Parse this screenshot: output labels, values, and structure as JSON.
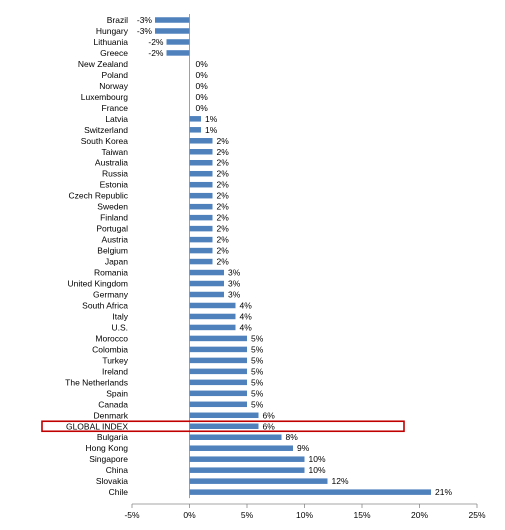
{
  "chart_data": {
    "type": "bar",
    "orientation": "horizontal",
    "title": "",
    "xlabel": "",
    "ylabel": "",
    "xlim": [
      -5,
      25
    ],
    "x_ticks": [
      -5,
      0,
      5,
      10,
      15,
      20,
      25
    ],
    "x_tick_labels": [
      "-5%",
      "0%",
      "5%",
      "10%",
      "15%",
      "20%",
      "25%"
    ],
    "grid": false,
    "legend": "none",
    "bar_color": "#4f81bd",
    "highlight": {
      "category": "GLOBAL INDEX",
      "outline_color": "#c00000"
    },
    "categories": [
      "Brazil",
      "Hungary",
      "Lithuania",
      "Greece",
      "New Zealand",
      "Poland",
      "Norway",
      "Luxembourg",
      "France",
      "Latvia",
      "Switzerland",
      "South Korea",
      "Taiwan",
      "Australia",
      "Russia",
      "Estonia",
      "Czech Republic",
      "Sweden",
      "Finland",
      "Portugal",
      "Austria",
      "Belgium",
      "Japan",
      "Romania",
      "United Kingdom",
      "Germany",
      "South Africa",
      "Italy",
      "U.S.",
      "Morocco",
      "Colombia",
      "Turkey",
      "Ireland",
      "The Netherlands",
      "Spain",
      "Canada",
      "Denmark",
      "GLOBAL INDEX",
      "Bulgaria",
      "Hong Kong",
      "Singapore",
      "China",
      "Slovakia",
      "Chile"
    ],
    "values": [
      -3,
      -3,
      -2,
      -2,
      0,
      0,
      0,
      0,
      0,
      1,
      1,
      2,
      2,
      2,
      2,
      2,
      2,
      2,
      2,
      2,
      2,
      2,
      2,
      3,
      3,
      3,
      4,
      4,
      4,
      5,
      5,
      5,
      5,
      5,
      5,
      5,
      6,
      6,
      8,
      9,
      10,
      10,
      12,
      21
    ],
    "value_labels": [
      "-3%",
      "-3%",
      "-2%",
      "-2%",
      "0%",
      "0%",
      "0%",
      "0%",
      "0%",
      "1%",
      "1%",
      "2%",
      "2%",
      "2%",
      "2%",
      "2%",
      "2%",
      "2%",
      "2%",
      "2%",
      "2%",
      "2%",
      "2%",
      "3%",
      "3%",
      "3%",
      "4%",
      "4%",
      "4%",
      "5%",
      "5%",
      "5%",
      "5%",
      "5%",
      "5%",
      "5%",
      "6%",
      "6%",
      "8%",
      "9%",
      "10%",
      "10%",
      "12%",
      "21%"
    ]
  }
}
